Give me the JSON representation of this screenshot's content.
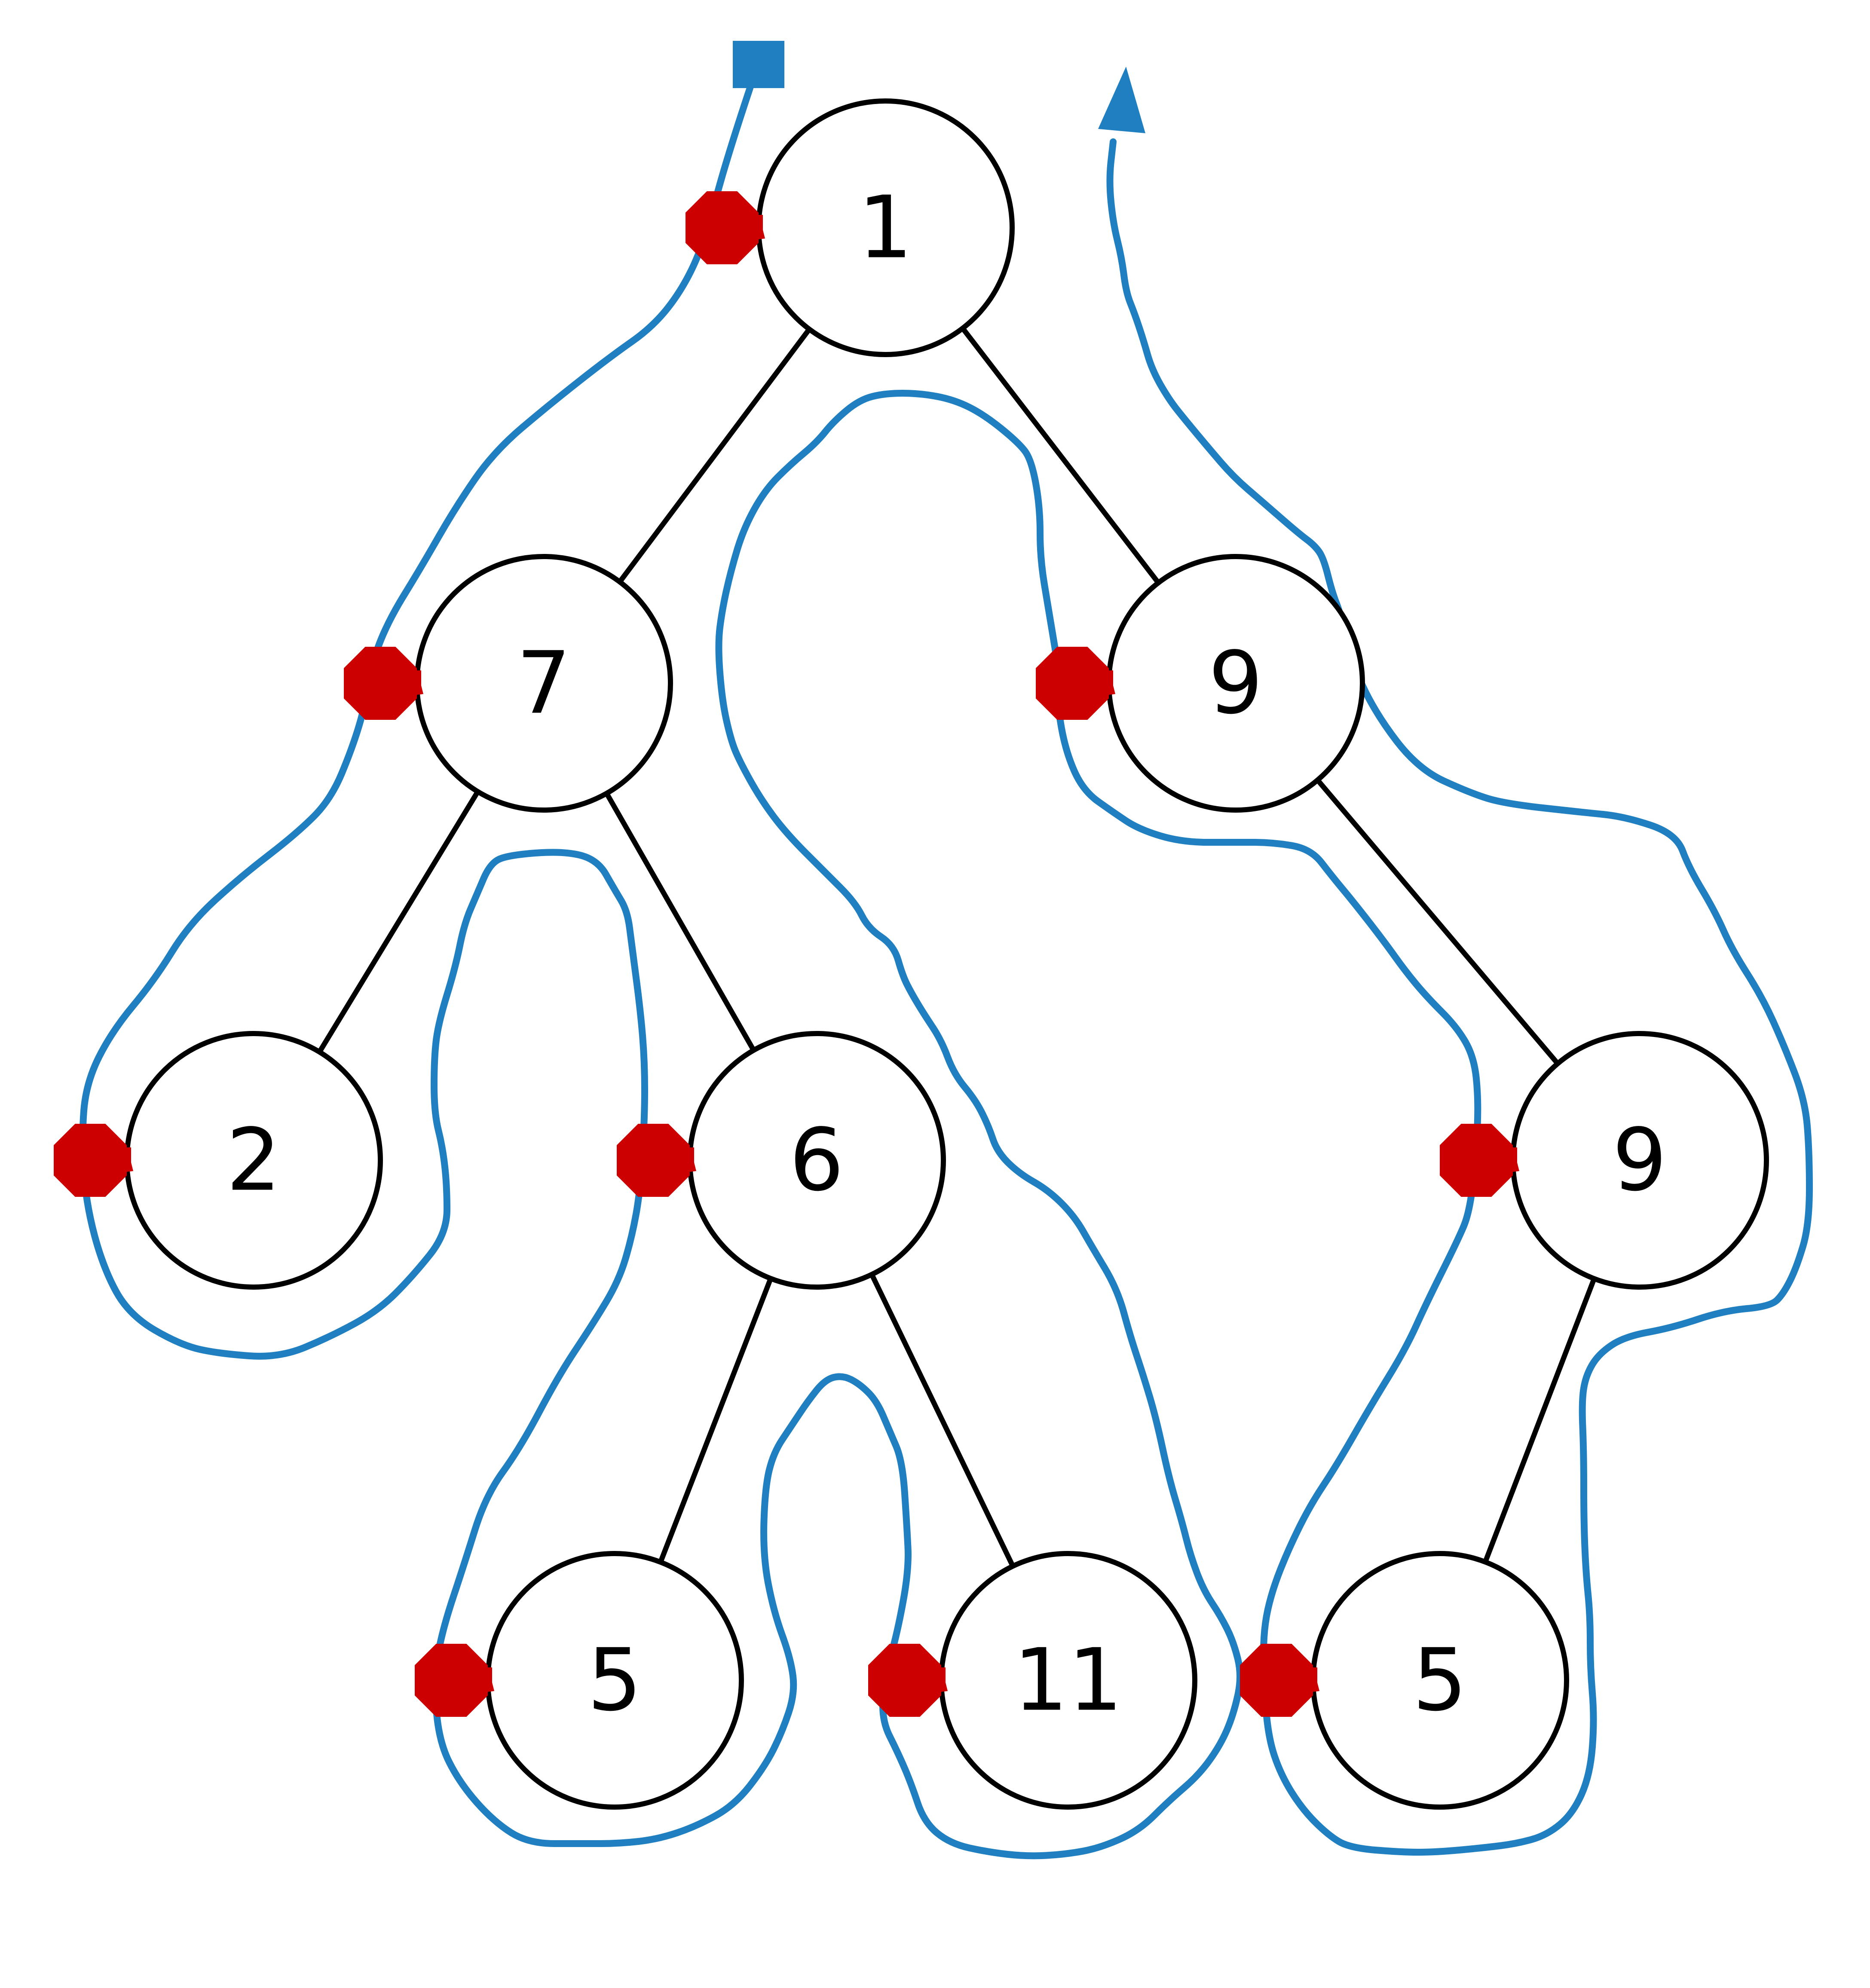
{
  "colors": {
    "traversal_path": "#1f7fc0",
    "visit_marker": "#cc0000",
    "node_stroke": "#000000",
    "edge": "#000000"
  },
  "tree": {
    "nodes": [
      {
        "id": "n1",
        "label": "1"
      },
      {
        "id": "n7",
        "label": "7"
      },
      {
        "id": "n9a",
        "label": "9"
      },
      {
        "id": "n2",
        "label": "2"
      },
      {
        "id": "n6",
        "label": "6"
      },
      {
        "id": "n9b",
        "label": "9"
      },
      {
        "id": "n5a",
        "label": "5"
      },
      {
        "id": "n11",
        "label": "11"
      },
      {
        "id": "n5b",
        "label": "5"
      }
    ],
    "edges": [
      [
        "n1",
        "n7"
      ],
      [
        "n1",
        "n9a"
      ],
      [
        "n7",
        "n2"
      ],
      [
        "n7",
        "n6"
      ],
      [
        "n6",
        "n5a"
      ],
      [
        "n6",
        "n11"
      ],
      [
        "n9a",
        "n9b"
      ],
      [
        "n9b",
        "n5b"
      ]
    ]
  },
  "traversal": {
    "start_marker": "square",
    "end_marker": "arrowhead",
    "visit_markers": [
      "n1",
      "n7",
      "n2",
      "n6",
      "n5a",
      "n11",
      "n9a",
      "n9b",
      "n5b"
    ]
  }
}
